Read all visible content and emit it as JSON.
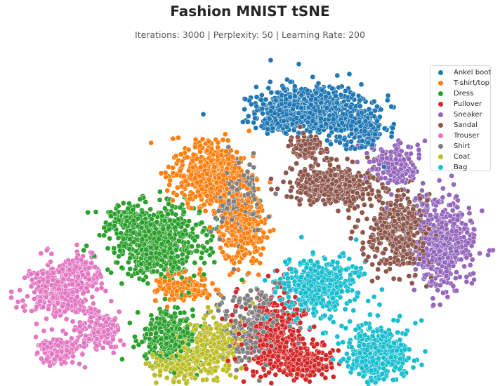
{
  "chart_data": {
    "type": "scatter",
    "title": "Fashion MNIST tSNE",
    "subtitle": "Iterations: 3000 | Perplexity: 50 | Learning Rate: 200",
    "xlabel": "",
    "ylabel": "",
    "axes_visible": false,
    "grid": false,
    "legend": "top-right",
    "series": [
      {
        "name": "Ankel boot",
        "color": "#1f77b4",
        "clusters": [
          {
            "cx": 445,
            "cy": 155,
            "rx": 70,
            "ry": 30,
            "n": 700
          },
          {
            "cx": 395,
            "cy": 172,
            "rx": 25,
            "ry": 14,
            "n": 120
          },
          {
            "cx": 515,
            "cy": 185,
            "rx": 35,
            "ry": 28,
            "n": 180
          }
        ]
      },
      {
        "name": "T-shirt/top",
        "color": "#ff7f0e",
        "clusters": [
          {
            "cx": 300,
            "cy": 250,
            "rx": 48,
            "ry": 40,
            "n": 500
          },
          {
            "cx": 345,
            "cy": 330,
            "rx": 28,
            "ry": 45,
            "n": 300
          },
          {
            "cx": 260,
            "cy": 410,
            "rx": 35,
            "ry": 18,
            "n": 160
          }
        ]
      },
      {
        "name": "Dress",
        "color": "#2ca02c",
        "clusters": [
          {
            "cx": 225,
            "cy": 345,
            "rx": 60,
            "ry": 45,
            "n": 700
          },
          {
            "cx": 240,
            "cy": 480,
            "rx": 40,
            "ry": 35,
            "n": 320
          },
          {
            "cx": 180,
            "cy": 310,
            "rx": 20,
            "ry": 14,
            "n": 90
          }
        ]
      },
      {
        "name": "Pullover",
        "color": "#d62728",
        "clusters": [
          {
            "cx": 390,
            "cy": 480,
            "rx": 40,
            "ry": 50,
            "n": 400
          },
          {
            "cx": 440,
            "cy": 515,
            "rx": 30,
            "ry": 25,
            "n": 180
          }
        ]
      },
      {
        "name": "Sneaker",
        "color": "#9467bd",
        "clusters": [
          {
            "cx": 630,
            "cy": 345,
            "rx": 40,
            "ry": 60,
            "n": 480
          },
          {
            "cx": 560,
            "cy": 235,
            "rx": 35,
            "ry": 25,
            "n": 160
          }
        ]
      },
      {
        "name": "Sandal",
        "color": "#8c564b",
        "clusters": [
          {
            "cx": 475,
            "cy": 265,
            "rx": 55,
            "ry": 25,
            "n": 420
          },
          {
            "cx": 570,
            "cy": 330,
            "rx": 40,
            "ry": 55,
            "n": 420
          },
          {
            "cx": 435,
            "cy": 210,
            "rx": 20,
            "ry": 15,
            "n": 90
          }
        ]
      },
      {
        "name": "Trouser",
        "color": "#e377c2",
        "clusters": [
          {
            "cx": 85,
            "cy": 415,
            "rx": 45,
            "ry": 35,
            "n": 380
          },
          {
            "cx": 115,
            "cy": 385,
            "rx": 25,
            "ry": 20,
            "n": 120
          },
          {
            "cx": 140,
            "cy": 470,
            "rx": 28,
            "ry": 25,
            "n": 160
          },
          {
            "cx": 85,
            "cy": 500,
            "rx": 28,
            "ry": 20,
            "n": 150
          }
        ]
      },
      {
        "name": "Shirt",
        "color": "#7f7f7f",
        "clusters": [
          {
            "cx": 340,
            "cy": 280,
            "rx": 30,
            "ry": 50,
            "n": 180
          },
          {
            "cx": 355,
            "cy": 470,
            "rx": 40,
            "ry": 50,
            "n": 260
          }
        ]
      },
      {
        "name": "Coat",
        "color": "#bcbd22",
        "clusters": [
          {
            "cx": 300,
            "cy": 495,
            "rx": 40,
            "ry": 40,
            "n": 260
          },
          {
            "cx": 250,
            "cy": 520,
            "rx": 35,
            "ry": 20,
            "n": 120
          }
        ]
      },
      {
        "name": "Bag",
        "color": "#17becf",
        "clusters": [
          {
            "cx": 455,
            "cy": 410,
            "rx": 50,
            "ry": 40,
            "n": 420
          },
          {
            "cx": 540,
            "cy": 505,
            "rx": 45,
            "ry": 35,
            "n": 380
          }
        ]
      }
    ]
  }
}
